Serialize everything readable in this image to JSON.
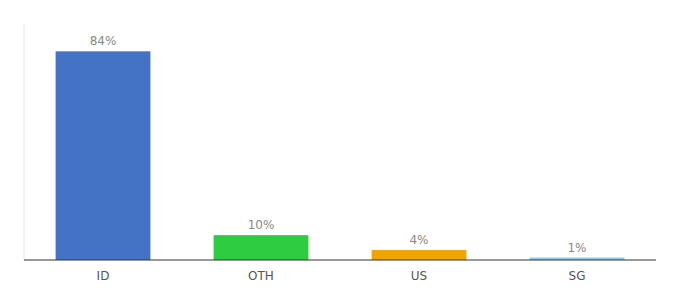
{
  "chart_data": {
    "type": "bar",
    "categories": [
      "ID",
      "OTH",
      "US",
      "SG"
    ],
    "values": [
      84,
      10,
      4,
      1
    ],
    "value_labels": [
      "84%",
      "10%",
      "4%",
      "1%"
    ],
    "colors": [
      "#4472c4",
      "#2ecc40",
      "#f0a500",
      "#87ceeb"
    ],
    "ylim": [
      0,
      95
    ],
    "data_labels": true,
    "tick_labels": "x"
  }
}
